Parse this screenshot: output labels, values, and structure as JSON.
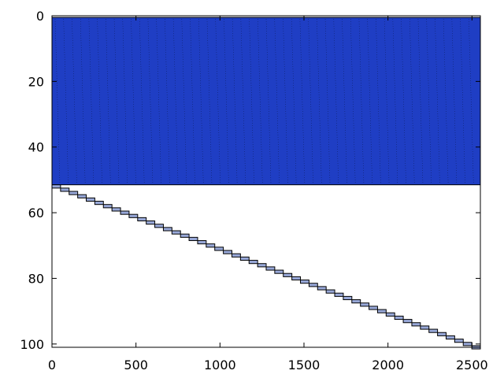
{
  "chart_data": {
    "type": "heatmap",
    "title": "",
    "xlabel": "",
    "ylabel": "",
    "xlim": [
      0,
      2550
    ],
    "ylim": [
      101,
      0
    ],
    "y_inverted": true,
    "x_ticks": [
      0,
      500,
      1000,
      1500,
      2000,
      2500
    ],
    "y_ticks": [
      0,
      20,
      40,
      60,
      80,
      100
    ],
    "grid": false,
    "legend": "none",
    "colors": {
      "fill": "#1f3ec4",
      "edge": "#000000",
      "block_fill": "#98a8d8",
      "background": "#ffffff"
    },
    "dense_block": {
      "rows": [
        1,
        51
      ],
      "columns": [
        0,
        2550
      ]
    },
    "diagonal_blocks": {
      "first_row": 52,
      "last_row": 101,
      "col_start": 0,
      "col_width": 51
    }
  }
}
